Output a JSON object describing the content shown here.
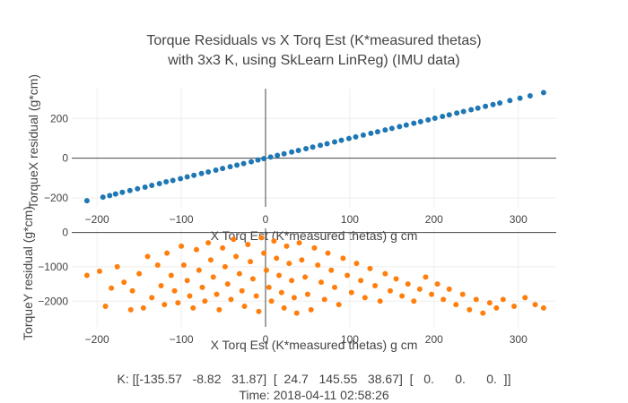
{
  "title": {
    "line1": "Torque Residuals vs X Torq Est (K*measured thetas)",
    "line2": "with 3x3 K, using SkLearn LinReg) (IMU data)"
  },
  "footer": {
    "line1": "K: [[-135.57   -8.82   31.87]  [  24.7   145.55   38.67]  [   0.      0.      0.  ]]",
    "line2": "Time: 2018-04-11 02:58:26"
  },
  "chart_data": [
    {
      "type": "scatter",
      "xlabel": "X Torq Est (K*measured thetas) g cm",
      "ylabel": "TorqueX residual (g*cm)",
      "xlim": [
        -230,
        345
      ],
      "ylim": [
        -245,
        350
      ],
      "xticks": [
        -200,
        -100,
        0,
        100,
        200,
        300
      ],
      "yticks": [
        -200,
        0,
        200
      ],
      "grid": true,
      "color": "#1f77b4",
      "relation": "y approximately equals x",
      "series": [
        {
          "values": [
            [
              -212,
              -214
            ],
            [
              -193,
              -196
            ],
            [
              -185,
              -188
            ],
            [
              -178,
              -180
            ],
            [
              -170,
              -172
            ],
            [
              -161,
              -163
            ],
            [
              -152,
              -154
            ],
            [
              -143,
              -146
            ],
            [
              -135,
              -137
            ],
            [
              -126,
              -128
            ],
            [
              -118,
              -119
            ],
            [
              -110,
              -112
            ],
            [
              -101,
              -103
            ],
            [
              -93,
              -94
            ],
            [
              -85,
              -86
            ],
            [
              -76,
              -77
            ],
            [
              -68,
              -69
            ],
            [
              -59,
              -60
            ],
            [
              -51,
              -52
            ],
            [
              -42,
              -43
            ],
            [
              -34,
              -35
            ],
            [
              -26,
              -27
            ],
            [
              -17,
              -18
            ],
            [
              -9,
              -9
            ],
            [
              -2,
              -2
            ],
            [
              6,
              6
            ],
            [
              14,
              14
            ],
            [
              22,
              22
            ],
            [
              31,
              31
            ],
            [
              39,
              39
            ],
            [
              48,
              48
            ],
            [
              56,
              56
            ],
            [
              65,
              65
            ],
            [
              73,
              73
            ],
            [
              82,
              82
            ],
            [
              90,
              90
            ],
            [
              99,
              99
            ],
            [
              107,
              107
            ],
            [
              116,
              116
            ],
            [
              125,
              125
            ],
            [
              133,
              133
            ],
            [
              142,
              142
            ],
            [
              150,
              150
            ],
            [
              159,
              159
            ],
            [
              167,
              167
            ],
            [
              176,
              176
            ],
            [
              184,
              184
            ],
            [
              193,
              193
            ],
            [
              201,
              201
            ],
            [
              210,
              210
            ],
            [
              218,
              218
            ],
            [
              227,
              227
            ],
            [
              235,
              235
            ],
            [
              244,
              244
            ],
            [
              252,
              252
            ],
            [
              261,
              261
            ],
            [
              270,
              270
            ],
            [
              278,
              278
            ],
            [
              290,
              290
            ],
            [
              302,
              302
            ],
            [
              314,
              314
            ],
            [
              330,
              330
            ]
          ]
        }
      ]
    },
    {
      "type": "scatter",
      "xlabel": "X Torq Est (K*measured thetas) g cm",
      "ylabel": "TorqueY residual (g*cm)",
      "xlim": [
        -230,
        345
      ],
      "ylim": [
        -2750,
        120
      ],
      "xticks": [
        -200,
        -100,
        0,
        100,
        200,
        300
      ],
      "yticks": [
        -2000,
        -1000,
        0
      ],
      "grid": true,
      "color": "#ff7f0e",
      "series": [
        {
          "values": [
            [
              -212,
              -1250
            ],
            [
              -197,
              -1130
            ],
            [
              -190,
              -2150
            ],
            [
              -183,
              -1620
            ],
            [
              -176,
              -1000
            ],
            [
              -168,
              -1450
            ],
            [
              -160,
              -2250
            ],
            [
              -158,
              -1700
            ],
            [
              -150,
              -1200
            ],
            [
              -145,
              -2200
            ],
            [
              -140,
              -700
            ],
            [
              -135,
              -1900
            ],
            [
              -128,
              -950
            ],
            [
              -124,
              -1550
            ],
            [
              -120,
              -2100
            ],
            [
              -117,
              -600
            ],
            [
              -112,
              -1250
            ],
            [
              -108,
              -1700
            ],
            [
              -104,
              -2050
            ],
            [
              -100,
              -400
            ],
            [
              -97,
              -950
            ],
            [
              -93,
              -1400
            ],
            [
              -90,
              -1850
            ],
            [
              -86,
              -2200
            ],
            [
              -82,
              -500
            ],
            [
              -79,
              -1100
            ],
            [
              -75,
              -1600
            ],
            [
              -72,
              -2000
            ],
            [
              -68,
              -300
            ],
            [
              -65,
              -800
            ],
            [
              -62,
              -1300
            ],
            [
              -58,
              -1800
            ],
            [
              -55,
              -2250
            ],
            [
              -51,
              -450
            ],
            [
              -48,
              -1000
            ],
            [
              -45,
              -1500
            ],
            [
              -41,
              -1950
            ],
            [
              -38,
              -200
            ],
            [
              -35,
              -700
            ],
            [
              -31,
              -1200
            ],
            [
              -28,
              -1700
            ],
            [
              -25,
              -2150
            ],
            [
              -21,
              -350
            ],
            [
              -18,
              -850
            ],
            [
              -15,
              -1350
            ],
            [
              -11,
              -1850
            ],
            [
              -8,
              -2300
            ],
            [
              -5,
              -150
            ],
            [
              -2,
              -600
            ],
            [
              1,
              -1100
            ],
            [
              4,
              -1600
            ],
            [
              7,
              -2000
            ],
            [
              10,
              -250
            ],
            [
              13,
              -750
            ],
            [
              16,
              -1250
            ],
            [
              19,
              -1750
            ],
            [
              22,
              -2200
            ],
            [
              25,
              -400
            ],
            [
              28,
              -900
            ],
            [
              31,
              -1400
            ],
            [
              34,
              -1900
            ],
            [
              37,
              -2350
            ],
            [
              40,
              -300
            ],
            [
              43,
              -800
            ],
            [
              47,
              -1300
            ],
            [
              50,
              -1800
            ],
            [
              54,
              -2250
            ],
            [
              58,
              -450
            ],
            [
              62,
              -950
            ],
            [
              66,
              -1450
            ],
            [
              70,
              -1950
            ],
            [
              74,
              -600
            ],
            [
              78,
              -1100
            ],
            [
              82,
              -1600
            ],
            [
              87,
              -2100
            ],
            [
              92,
              -750
            ],
            [
              97,
              -1250
            ],
            [
              102,
              -1750
            ],
            [
              108,
              -900
            ],
            [
              113,
              -1400
            ],
            [
              118,
              -1900
            ],
            [
              124,
              -1050
            ],
            [
              130,
              -1550
            ],
            [
              136,
              -2000
            ],
            [
              142,
              -1200
            ],
            [
              148,
              -1700
            ],
            [
              155,
              -1350
            ],
            [
              162,
              -1850
            ],
            [
              169,
              -1500
            ],
            [
              176,
              -2000
            ],
            [
              183,
              -1650
            ],
            [
              190,
              -1300
            ],
            [
              197,
              -1800
            ],
            [
              204,
              -1500
            ],
            [
              211,
              -1950
            ],
            [
              218,
              -1650
            ],
            [
              226,
              -2100
            ],
            [
              234,
              -1800
            ],
            [
              242,
              -2250
            ],
            [
              250,
              -1950
            ],
            [
              258,
              -2350
            ],
            [
              266,
              -2050
            ],
            [
              274,
              -2200
            ],
            [
              282,
              -1950
            ],
            [
              295,
              -2150
            ],
            [
              308,
              -1900
            ],
            [
              320,
              -2100
            ],
            [
              330,
              -2200
            ]
          ]
        }
      ]
    }
  ]
}
